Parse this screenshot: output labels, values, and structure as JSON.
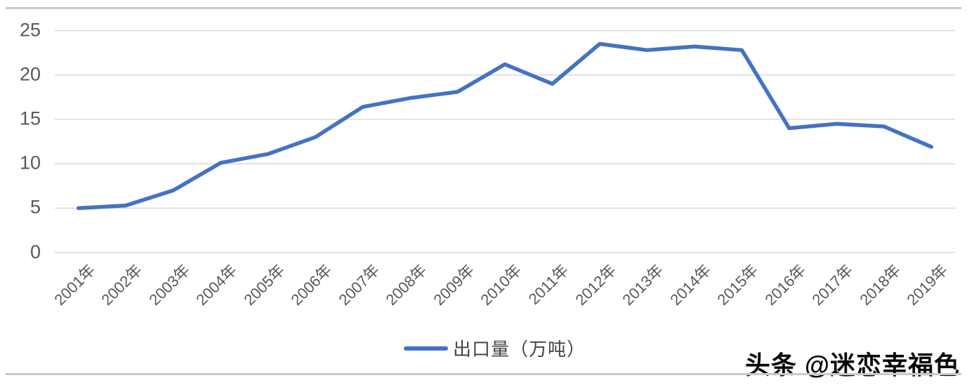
{
  "chart_data": {
    "type": "line",
    "title": "",
    "xlabel": "",
    "ylabel": "",
    "categories": [
      "2001年",
      "2002年",
      "2003年",
      "2004年",
      "2005年",
      "2006年",
      "2007年",
      "2008年",
      "2009年",
      "2010年",
      "2011年",
      "2012年",
      "2013年",
      "2014年",
      "2015年",
      "2016年",
      "2017年",
      "2018年",
      "2019年"
    ],
    "series": [
      {
        "name": "出口量（万吨）",
        "color": "#4472c4",
        "values": [
          5.0,
          5.3,
          7.0,
          10.1,
          11.1,
          13.0,
          16.4,
          17.4,
          18.1,
          21.2,
          19.0,
          23.5,
          22.8,
          23.2,
          22.8,
          14.0,
          14.5,
          14.2,
          11.9
        ]
      }
    ],
    "ylim": [
      0,
      25
    ],
    "yticks": [
      0,
      5,
      10,
      15,
      20,
      25
    ],
    "grid": true,
    "gridline_color": "#d9d9d9",
    "legend_position": "bottom"
  },
  "legend": {
    "label": "出口量（万吨）"
  },
  "watermark": {
    "text": "头条 @迷恋幸福色"
  },
  "colors": {
    "series_blue": "#4472c4",
    "gridline": "#d9d9d9",
    "divider": "#c9c9c9",
    "tick_label": "#595959",
    "legend_text": "#444444",
    "watermark_text": "#0a0a0a"
  }
}
